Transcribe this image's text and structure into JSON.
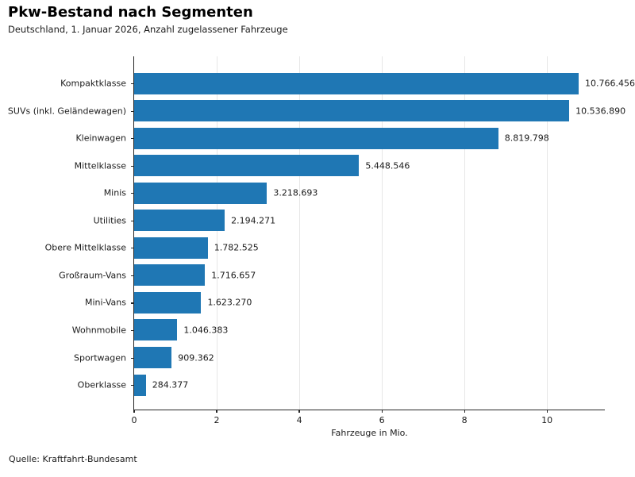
{
  "header": {
    "title": "Pkw-Bestand nach Segmenten",
    "subtitle": "Deutschland, 1. Januar 2026, Anzahl zugelassener Fahrzeuge"
  },
  "footer": {
    "source": "Quelle: Kraftfahrt-Bundesamt"
  },
  "colors": {
    "bar": "#1f77b4",
    "grid": "#e7e7e7",
    "axis": "#262626"
  },
  "chart_data": {
    "type": "bar",
    "orientation": "horizontal",
    "title": "Pkw-Bestand nach Segmenten",
    "subtitle": "Deutschland, 1. Januar 2026, Anzahl zugelassener Fahrzeuge",
    "categories": [
      "Kompaktklasse",
      "SUVs (inkl. Geländewagen)",
      "Kleinwagen",
      "Mittelklasse",
      "Minis",
      "Utilities",
      "Obere Mittelklasse",
      "Großraum-Vans",
      "Mini-Vans",
      "Wohnmobile",
      "Sportwagen",
      "Oberklasse"
    ],
    "values": [
      10766456,
      10536890,
      8819798,
      5448546,
      3218693,
      2194271,
      1782525,
      1716657,
      1623270,
      1046383,
      909362,
      284377
    ],
    "value_labels": [
      "10.766.456",
      "10.536.890",
      "8.819.798",
      "5.448.546",
      "3.218.693",
      "2.194.271",
      "1.782.525",
      "1.716.657",
      "1.623.270",
      "1.046.383",
      "909.362",
      "284.377"
    ],
    "xlabel": "Fahrzeuge in Mio.",
    "xticks": [
      0,
      2,
      4,
      6,
      8,
      10
    ],
    "xlim": [
      0,
      11.4
    ],
    "value_unit_divisor": 1000000,
    "grid": "vertical",
    "legend": "none",
    "bar_color": "#1f77b4",
    "source": "Quelle: Kraftfahrt-Bundesamt"
  }
}
